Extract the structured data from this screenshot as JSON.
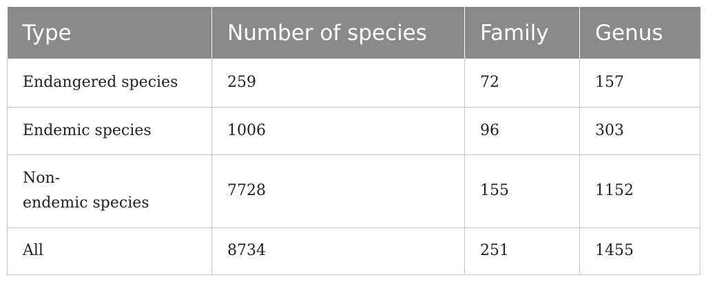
{
  "table": {
    "headers": [
      "Type",
      "Number of species",
      "Family",
      "Genus"
    ],
    "rows": [
      {
        "type": "Endangered species",
        "number": "259",
        "family": "72",
        "genus": "157"
      },
      {
        "type": "Endemic species",
        "number": "1006",
        "family": "96",
        "genus": "303"
      },
      {
        "type_line1": "Non-",
        "type_line2": "endemic species",
        "number": "7728",
        "family": "155",
        "genus": "1152"
      },
      {
        "type": "All",
        "number": "8734",
        "family": "251",
        "genus": "1455"
      }
    ]
  },
  "colors": {
    "header_bg": "#8a8a8a",
    "header_text": "#ffffff",
    "grid": "#c4c4c4"
  }
}
